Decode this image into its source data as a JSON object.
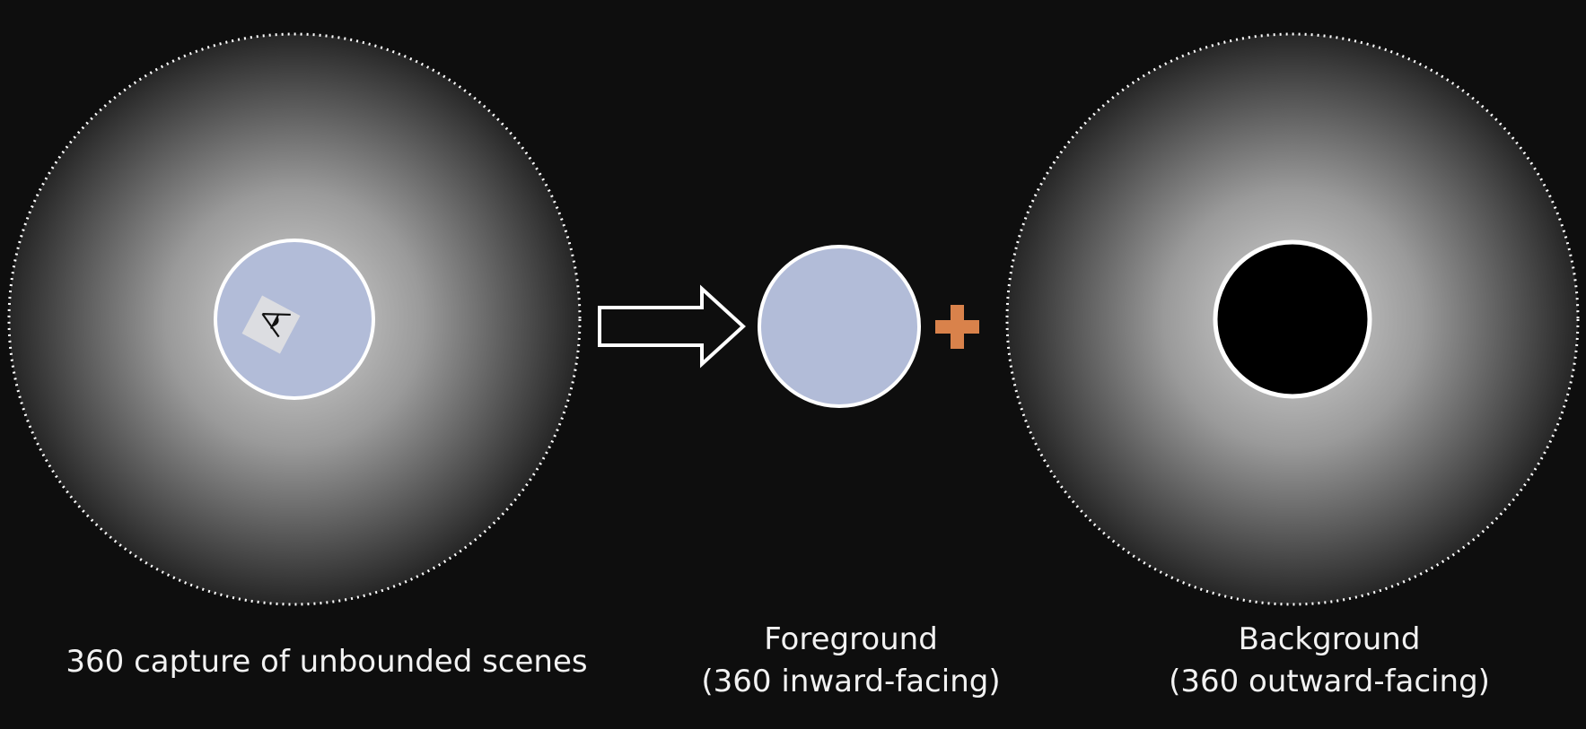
{
  "captions": {
    "left": "360 capture of unbounded scenes",
    "middle_line1": "Foreground",
    "middle_line2": "(360 inward-facing)",
    "right_line1": "Background",
    "right_line2": "(360 outward-facing)"
  },
  "colors": {
    "background": "#0e0e0e",
    "foreground_disk": "#b2bcd8",
    "plus_sign": "#d9824b",
    "outline": "#ffffff",
    "gradient_center": "#d6d6d6",
    "gradient_edge": "#262626"
  },
  "icons": {
    "camera": "eye-camera-icon",
    "arrow": "right-arrow-icon",
    "plus": "plus-icon"
  }
}
